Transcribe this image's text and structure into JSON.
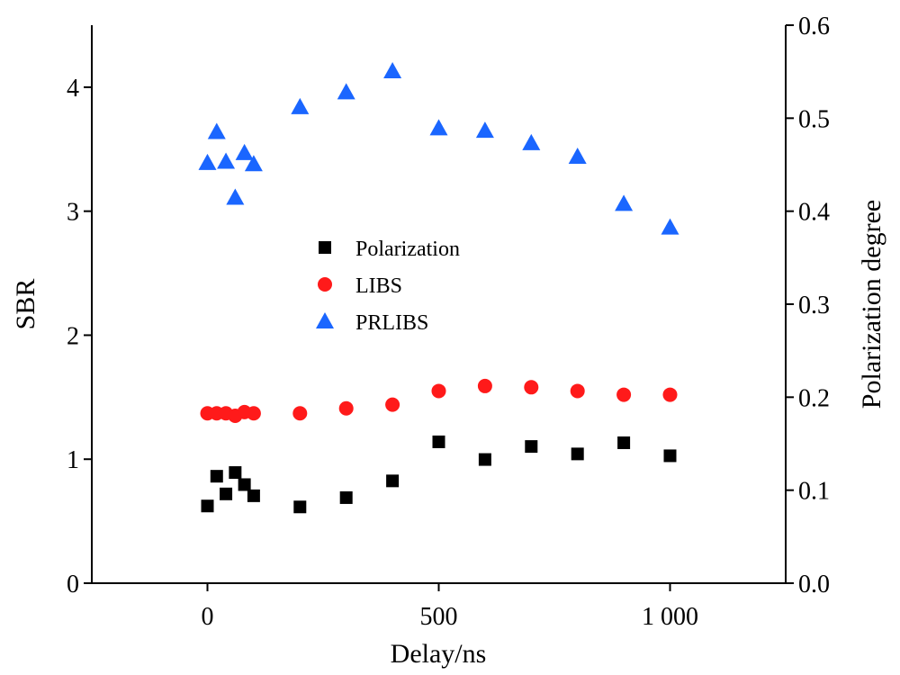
{
  "chart_data": {
    "type": "scatter",
    "xlabel": "Delay/ns",
    "ylabel": "SBR",
    "y2label": "Polarization degree",
    "xlim": [
      -250,
      1250
    ],
    "ylim": [
      0,
      4.5
    ],
    "y2lim": [
      0,
      0.6
    ],
    "x_ticks": [
      0,
      500,
      1000
    ],
    "x_tick_labels": [
      "0",
      "500",
      "1 000"
    ],
    "y_ticks": [
      0,
      1,
      2,
      3,
      4
    ],
    "y_tick_labels": [
      "0",
      "1",
      "2",
      "3",
      "4"
    ],
    "y2_ticks": [
      0,
      0.1,
      0.2,
      0.3,
      0.4,
      0.5,
      0.6
    ],
    "y2_tick_labels": [
      "0.0",
      "0.1",
      "0.2",
      "0.3",
      "0.4",
      "0.5",
      "0.6"
    ],
    "grid": false,
    "legend_position": "center",
    "series": [
      {
        "name": "Polarization",
        "marker": "square",
        "color": "#000000",
        "axis": "right",
        "x": [
          0,
          20,
          40,
          60,
          80,
          100,
          200,
          300,
          400,
          500,
          600,
          700,
          800,
          900,
          1000
        ],
        "y": [
          0.083,
          0.115,
          0.096,
          0.119,
          0.106,
          0.094,
          0.082,
          0.092,
          0.11,
          0.152,
          0.133,
          0.147,
          0.139,
          0.151,
          0.137
        ]
      },
      {
        "name": "LIBS",
        "marker": "circle",
        "color": "#ff1a1a",
        "axis": "left",
        "x": [
          0,
          20,
          40,
          60,
          80,
          100,
          200,
          300,
          400,
          500,
          600,
          700,
          800,
          900,
          1000
        ],
        "y": [
          1.37,
          1.37,
          1.37,
          1.35,
          1.38,
          1.37,
          1.37,
          1.41,
          1.44,
          1.55,
          1.59,
          1.58,
          1.55,
          1.52,
          1.52
        ]
      },
      {
        "name": "PRLIBS",
        "marker": "triangle",
        "color": "#1a66ff",
        "axis": "left",
        "x": [
          0,
          20,
          40,
          60,
          80,
          100,
          200,
          300,
          400,
          500,
          600,
          700,
          800,
          900,
          1000
        ],
        "y": [
          3.39,
          3.64,
          3.4,
          3.11,
          3.47,
          3.38,
          3.84,
          3.96,
          4.13,
          3.67,
          3.65,
          3.55,
          3.44,
          3.06,
          2.87
        ]
      }
    ]
  }
}
